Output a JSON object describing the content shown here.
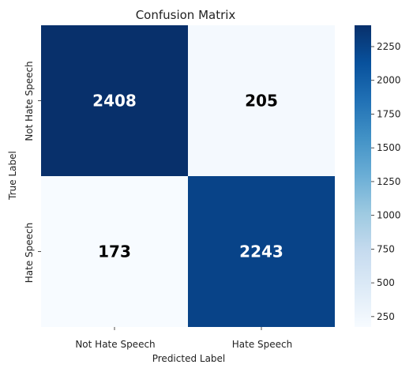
{
  "chart_data": {
    "type": "heatmap",
    "title": "Confusion Matrix",
    "xlabel": "Predicted Label",
    "ylabel": "True Label",
    "x_categories": [
      "Not Hate Speech",
      "Hate Speech"
    ],
    "y_categories": [
      "Not Hate Speech",
      "Hate Speech"
    ],
    "values": [
      [
        2408,
        205
      ],
      [
        173,
        2243
      ]
    ],
    "cell_labels": [
      [
        "2408",
        "205"
      ],
      [
        "173",
        "2243"
      ]
    ],
    "colormap": "Blues",
    "color_range": [
      173,
      2408
    ],
    "colorbar_ticks": [
      "250",
      "500",
      "750",
      "1000",
      "1250",
      "1500",
      "1750",
      "2000",
      "2250"
    ],
    "colorbar_tick_values": [
      250,
      500,
      750,
      1000,
      1250,
      1500,
      1750,
      2000,
      2250
    ]
  }
}
